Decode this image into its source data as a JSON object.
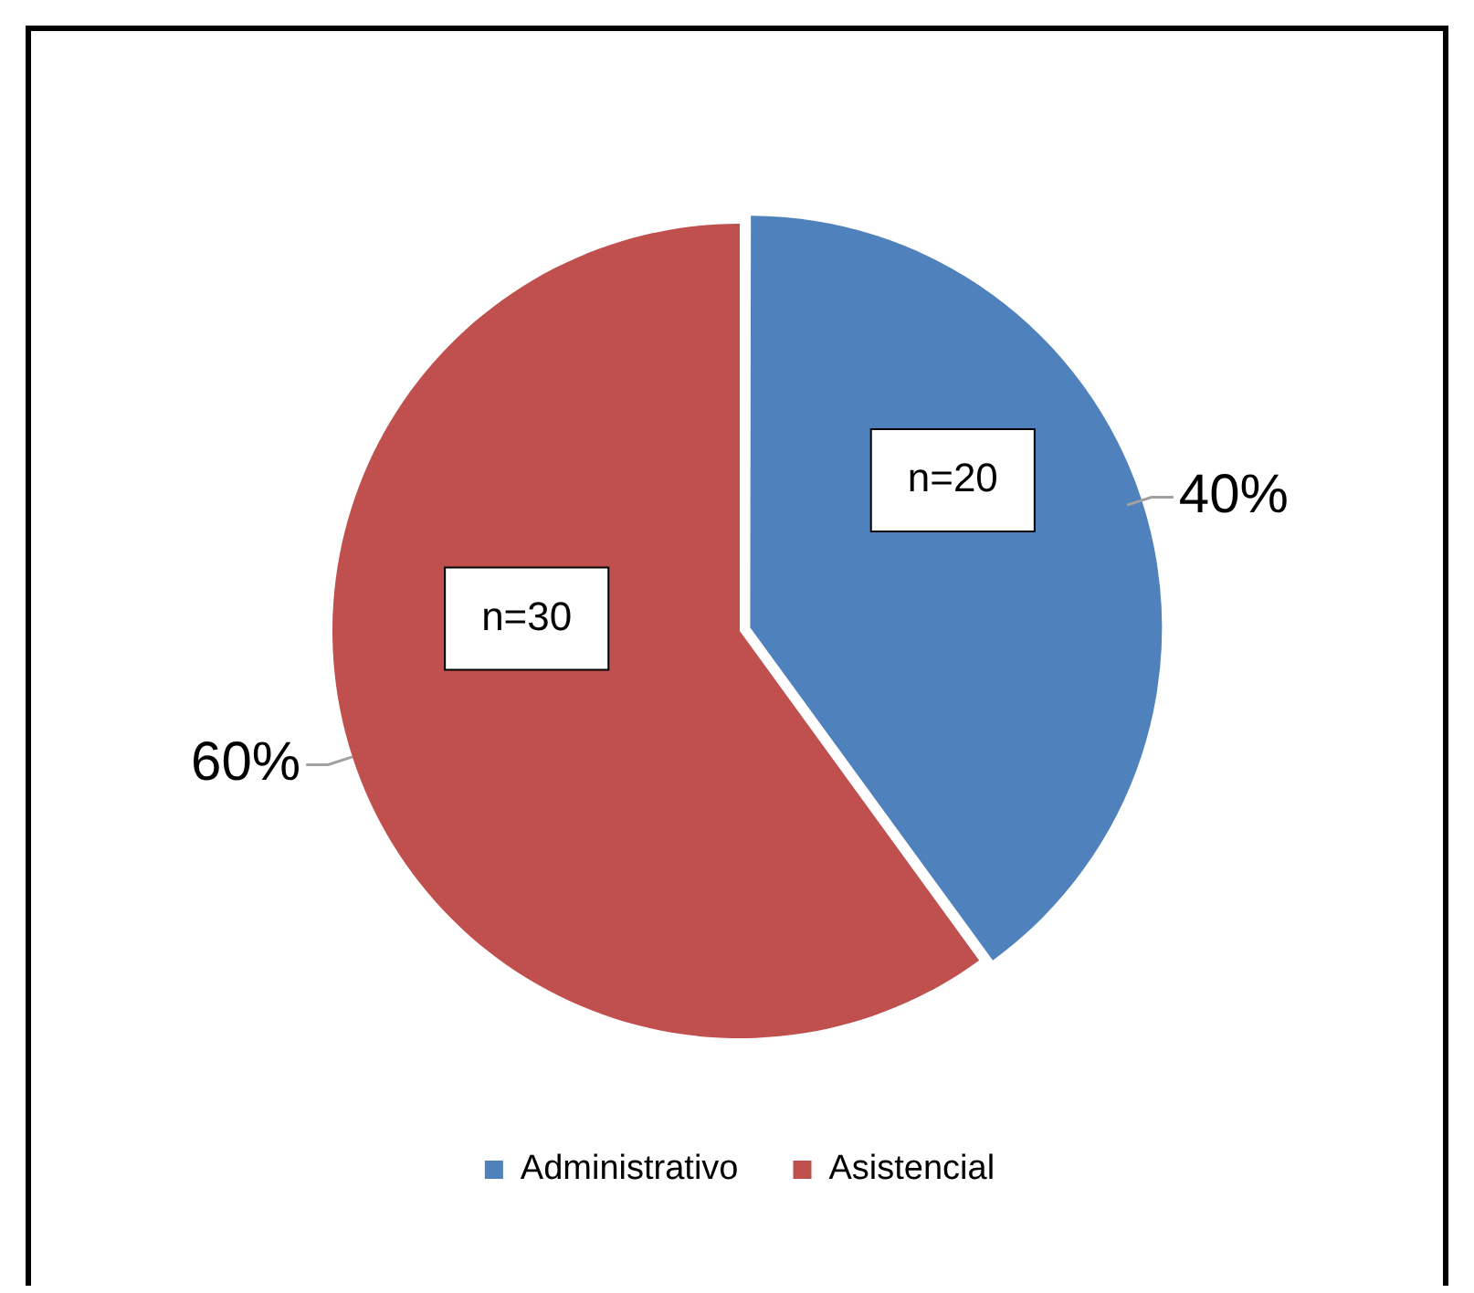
{
  "chart_data": {
    "type": "pie",
    "categories": [
      "Administrativo",
      "Asistencial"
    ],
    "values": [
      40,
      60
    ],
    "colors": [
      "#4f81bd",
      "#c0504d"
    ],
    "value_labels": [
      "40%",
      "60%"
    ],
    "annotations": [
      {
        "text": "n=20",
        "x": "Administrativo"
      },
      {
        "text": "n=30",
        "x": "Asistencial"
      }
    ],
    "legend": "bottom"
  }
}
